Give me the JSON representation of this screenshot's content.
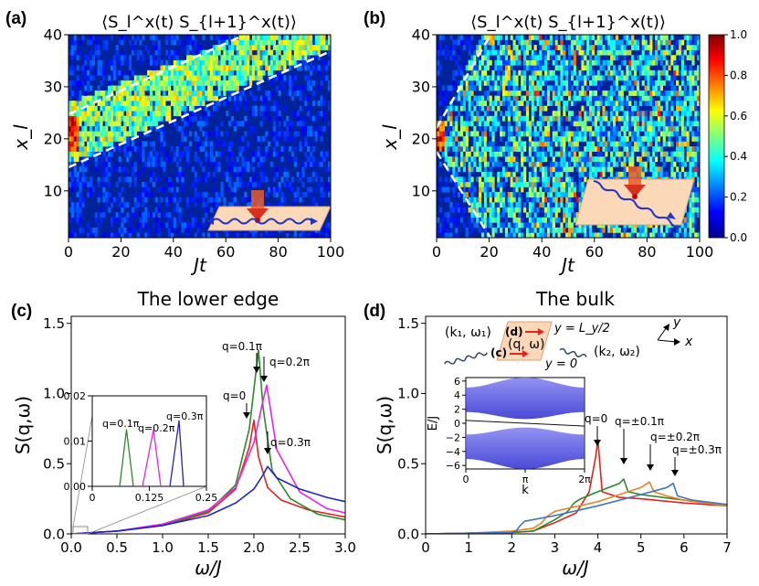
{
  "panel_labels": [
    "(a)",
    "(b)",
    "(c)",
    "(d)"
  ],
  "colorbar": {
    "ticks": [
      "1.0",
      "0.8",
      "0.6",
      "0.4",
      "0.2",
      "0.0"
    ]
  },
  "colors": {
    "red": "#e8201f",
    "green": "#2a8a2a",
    "magenta": "#ee20ee",
    "blue": "#2222cc",
    "orange": "#f07f22",
    "steel": "#3a77c2"
  },
  "chart_data": [
    {
      "type": "heatmap",
      "title": "⟨S_l^x(t) S_{l+1}^x(t)⟩",
      "xlabel": "Jt",
      "ylabel": "x_l",
      "xlim": [
        0,
        100
      ],
      "ylim": [
        1,
        40
      ],
      "xticks": [
        "0",
        "20",
        "40",
        "60",
        "80",
        "100"
      ],
      "yticks": [
        "10",
        "20",
        "30",
        "40"
      ],
      "annotations": [
        "edge-propagating wavepacket bounded by dashed lines from x_l≈15–25 at Jt=0 rising toward x_l≈37–40 near Jt≈70–100"
      ]
    },
    {
      "type": "heatmap",
      "title": "⟨S_l^x(t) S_{l+1}^x(t)⟩",
      "xlabel": "Jt",
      "ylabel": "x_l",
      "xlim": [
        0,
        100
      ],
      "ylim": [
        1,
        40
      ],
      "xticks": [
        "0",
        "20",
        "40",
        "60",
        "80",
        "100"
      ],
      "yticks": [
        "10",
        "20",
        "30",
        "40"
      ],
      "colorbar": [
        0.0,
        1.0
      ],
      "annotations": [
        "bulk spreading light-cone from x_l≈20 at Jt=0 reaching edges by Jt≈20"
      ]
    },
    {
      "type": "line",
      "title": "The lower edge",
      "xlabel": "ω/J",
      "ylabel": "S(q,ω)",
      "xlim": [
        0,
        3.0
      ],
      "ylim": [
        0,
        1.55
      ],
      "xticks": [
        "0.0",
        "0.5",
        "1.0",
        "1.5",
        "2.0",
        "2.5",
        "3.0"
      ],
      "yticks": [
        "0.0",
        "0.5",
        "1.0",
        "1.5"
      ],
      "series": [
        {
          "name": "q=0",
          "color": "red",
          "x": [
            0,
            0.5,
            1.0,
            1.5,
            1.8,
            1.95,
            2.0,
            2.05,
            2.15,
            2.3,
            2.6,
            3.0
          ],
          "y": [
            0,
            0.02,
            0.06,
            0.15,
            0.32,
            0.62,
            0.81,
            0.55,
            0.33,
            0.24,
            0.17,
            0.12
          ]
        },
        {
          "name": "q=0.1π",
          "color": "green",
          "x": [
            0,
            0.5,
            1.0,
            1.5,
            1.8,
            1.95,
            2.05,
            2.1,
            2.2,
            2.4,
            2.7,
            3.0
          ],
          "y": [
            0,
            0.02,
            0.06,
            0.16,
            0.35,
            0.75,
            1.31,
            0.9,
            0.45,
            0.25,
            0.14,
            0.1
          ]
        },
        {
          "name": "q=0.2π",
          "color": "magenta",
          "x": [
            0,
            0.5,
            1.0,
            1.5,
            1.8,
            2.0,
            2.1,
            2.14,
            2.25,
            2.5,
            2.8,
            3.0
          ],
          "y": [
            0,
            0.02,
            0.07,
            0.17,
            0.33,
            0.65,
            0.95,
            1.06,
            0.6,
            0.3,
            0.18,
            0.15
          ]
        },
        {
          "name": "q=0.3π",
          "color": "blue",
          "x": [
            0,
            0.5,
            1.0,
            1.5,
            1.8,
            2.0,
            2.1,
            2.15,
            2.25,
            2.5,
            2.8,
            3.0
          ],
          "y": [
            0,
            0.02,
            0.06,
            0.13,
            0.22,
            0.32,
            0.42,
            0.48,
            0.4,
            0.32,
            0.26,
            0.23
          ]
        }
      ],
      "annotations": [
        "q=0",
        "q=0.1π",
        "q=0.2π",
        "q=0.3π"
      ],
      "inset": {
        "xlim": [
          0,
          0.25
        ],
        "ylim": [
          0,
          0.02
        ],
        "xticks": [
          "0",
          "0.125",
          "0.25"
        ],
        "yticks": [
          "0.00",
          "0.01",
          "0.02"
        ],
        "series": [
          {
            "name": "q=0.1π",
            "color": "green",
            "x": [
              0.06,
              0.075,
              0.09
            ],
            "y": [
              0,
              0.0125,
              0
            ]
          },
          {
            "name": "q=0.2π",
            "color": "magenta",
            "x": [
              0.11,
              0.134,
              0.15
            ],
            "y": [
              0,
              0.0125,
              0
            ]
          },
          {
            "name": "q=0.3π",
            "color": "blue",
            "x": [
              0.17,
              0.19,
              0.2
            ],
            "y": [
              0,
              0.0145,
              0
            ]
          }
        ],
        "labels": [
          "q=0.1π",
          "q=0.2π",
          "q=0.3π"
        ]
      }
    },
    {
      "type": "line",
      "title": "The bulk",
      "xlabel": "ω/J",
      "ylabel": "S(q,ω)",
      "xlim": [
        0,
        7
      ],
      "ylim": [
        0,
        1.55
      ],
      "xticks": [
        "0",
        "1",
        "2",
        "3",
        "4",
        "5",
        "6",
        "7"
      ],
      "yticks": [
        "0.0",
        "0.5",
        "1.0",
        "1.5"
      ],
      "series": [
        {
          "name": "q=0",
          "color": "red",
          "x": [
            0,
            1,
            2,
            2.5,
            3,
            3.5,
            3.8,
            3.95,
            4.0,
            4.1,
            4.5,
            5,
            6,
            7
          ],
          "y": [
            0,
            0.005,
            0.01,
            0.02,
            0.08,
            0.15,
            0.3,
            0.55,
            0.67,
            0.3,
            0.26,
            0.25,
            0.22,
            0.2
          ]
        },
        {
          "name": "q=±0.1π",
          "color": "green",
          "x": [
            0,
            1,
            2,
            2.5,
            3,
            3.3,
            3.45,
            3.6,
            4,
            4.5,
            4.6,
            4.7,
            5,
            6,
            7
          ],
          "y": [
            0,
            0.005,
            0.01,
            0.02,
            0.1,
            0.16,
            0.22,
            0.25,
            0.3,
            0.36,
            0.39,
            0.3,
            0.28,
            0.24,
            0.2
          ]
        },
        {
          "name": "q=±0.2π",
          "color": "orange",
          "x": [
            0,
            1,
            2,
            2.5,
            2.7,
            2.8,
            3,
            4,
            5,
            5.2,
            5.3,
            5.6,
            6,
            7
          ],
          "y": [
            0,
            0.005,
            0.02,
            0.04,
            0.08,
            0.12,
            0.16,
            0.23,
            0.33,
            0.37,
            0.3,
            0.27,
            0.24,
            0.2
          ]
        },
        {
          "name": "q=±0.3π",
          "color": "steel",
          "x": [
            0,
            1,
            2,
            2.1,
            2.2,
            2.3,
            3,
            4,
            5,
            5.6,
            5.75,
            5.85,
            6.2,
            7
          ],
          "y": [
            0,
            0.005,
            0.01,
            0.02,
            0.06,
            0.09,
            0.13,
            0.2,
            0.28,
            0.33,
            0.36,
            0.27,
            0.24,
            0.21
          ]
        }
      ],
      "annotations": [
        "q=0",
        "q=±0.1π",
        "q=±0.2π",
        "q=±0.3π"
      ],
      "schematic": {
        "labels": [
          "(k₁, ω₁)",
          "(d)",
          "(c)",
          "(q, ω)",
          "y = L_y/2",
          "y = 0",
          "(k₂, ω₂)",
          "y",
          "x"
        ]
      },
      "inset": {
        "type": "band-structure",
        "xlabel": "k",
        "ylabel": "E/J",
        "xticks": [
          "0",
          "π",
          "2π"
        ],
        "yticks": [
          "6",
          "4",
          "2",
          "0",
          "−2",
          "−4",
          "−6"
        ],
        "ylim": [
          -6.5,
          6.5
        ]
      }
    }
  ]
}
